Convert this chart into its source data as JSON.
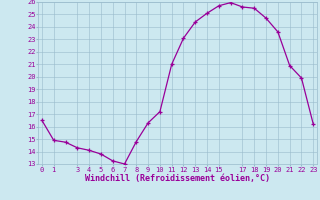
{
  "xlabel": "Windchill (Refroidissement éolien,°C)",
  "x_data": [
    0,
    1,
    2,
    3,
    4,
    5,
    6,
    7,
    8,
    9,
    10,
    11,
    12,
    13,
    14,
    15,
    16,
    17,
    18,
    19,
    20,
    21,
    22,
    23
  ],
  "y_data": [
    16.5,
    14.9,
    14.75,
    14.3,
    14.1,
    13.8,
    13.25,
    13.0,
    14.8,
    16.3,
    17.2,
    21.0,
    23.1,
    24.4,
    25.1,
    25.7,
    25.95,
    25.6,
    25.5,
    24.7,
    23.6,
    20.9,
    19.9,
    16.2
  ],
  "line_color": "#990099",
  "bg_color": "#cce8f0",
  "grid_color": "#99bbcc",
  "axis_color": "#990099",
  "ylim": [
    13,
    26
  ],
  "xlim_min": -0.3,
  "xlim_max": 23.3,
  "yticks": [
    13,
    14,
    15,
    16,
    17,
    18,
    19,
    20,
    21,
    22,
    23,
    24,
    25,
    26
  ],
  "xticks": [
    0,
    1,
    3,
    4,
    5,
    6,
    7,
    8,
    9,
    10,
    11,
    12,
    13,
    14,
    15,
    17,
    18,
    19,
    20,
    21,
    22,
    23
  ],
  "tick_fontsize": 5,
  "xlabel_fontsize": 6,
  "linewidth": 0.9,
  "markersize": 3.5,
  "marker_every": 1
}
